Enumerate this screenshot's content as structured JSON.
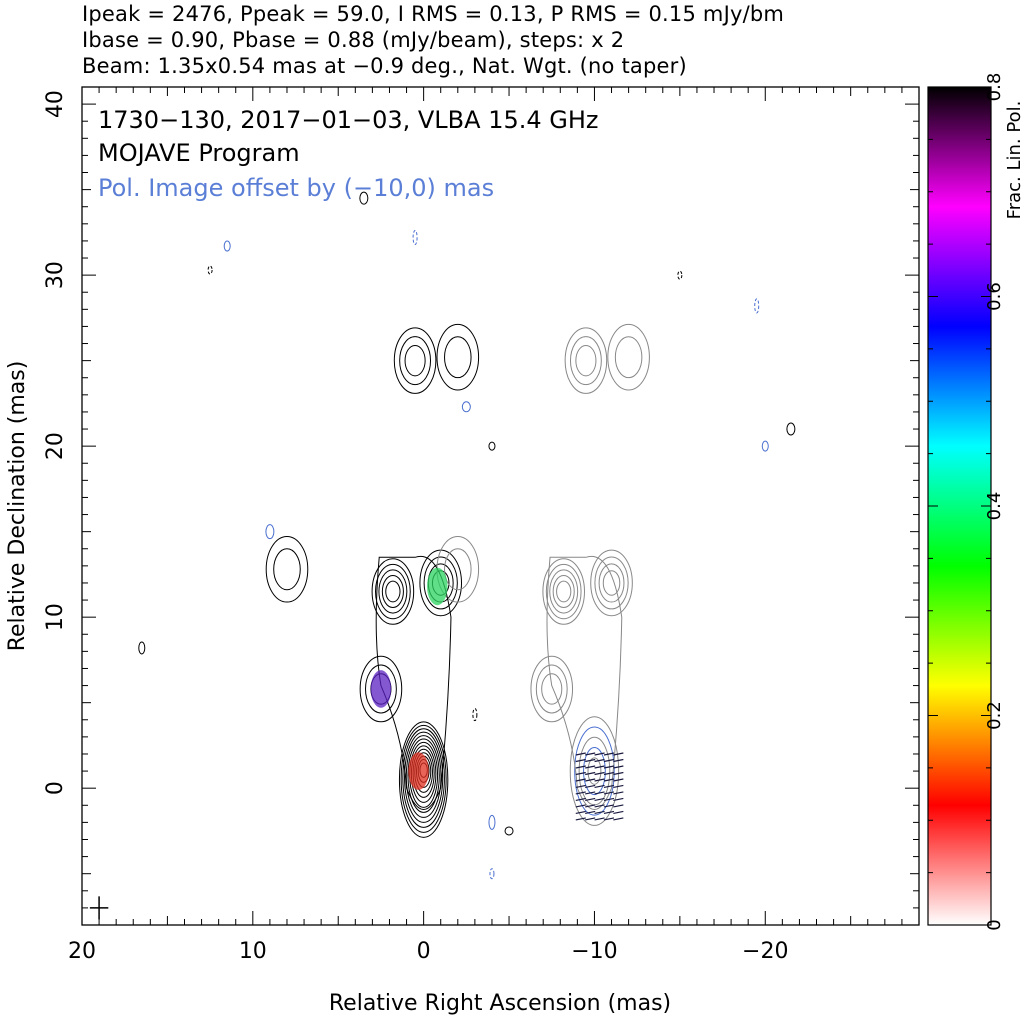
{
  "header": {
    "line1": "Ipeak = 2476, Ppeak = 59.0, I RMS = 0.13, P RMS = 0.15 mJy/bm",
    "line2": "Ibase = 0.90, Pbase = 0.88 (mJy/beam), steps: x 2",
    "line3": "Beam: 1.35x0.54 mas at −0.9 deg., Nat. Wgt. (no taper)"
  },
  "chart_data": {
    "type": "contour",
    "title": "1730−130, 2017−01−03, VLBA 15.4 GHz",
    "subtitle": "MOJAVE Program",
    "annotation": "Pol. Image offset by (−10,0) mas",
    "xlabel": "Relative Right Ascension (mas)",
    "ylabel": "Relative Declination (mas)",
    "xlim": [
      20,
      -29
    ],
    "ylim": [
      -8,
      41
    ],
    "xticks": [
      20,
      10,
      0,
      -10,
      -20
    ],
    "xtick_labels": [
      "20",
      "10",
      "0",
      "−10",
      "−20"
    ],
    "yticks": [
      0,
      10,
      20,
      30,
      40
    ],
    "ytick_labels": [
      "0",
      "10",
      "20",
      "30",
      "40"
    ],
    "colorbar": {
      "label": "Frac. Lin. Pol.",
      "range": [
        0,
        0.8
      ],
      "ticks": [
        0,
        0.2,
        0.4,
        0.6,
        0.8
      ],
      "tick_labels": [
        "0",
        "0.2",
        "0.4",
        "0.6",
        "0.8"
      ],
      "colors": [
        "#ffffff",
        "#ff0000",
        "#ffff00",
        "#00ff00",
        "#00ffff",
        "#0000ff",
        "#ff00ff",
        "#000000"
      ]
    },
    "stokes_i_core": {
      "x": 0,
      "y": 0.5,
      "levels": 13
    },
    "stokes_i_components": [
      {
        "x": 1.8,
        "y": 11.5,
        "levels": 5
      },
      {
        "x": -1,
        "y": 12,
        "levels": 4
      },
      {
        "x": 2.5,
        "y": 5.8,
        "levels": 3
      },
      {
        "x": 0.5,
        "y": 25,
        "levels": 3
      },
      {
        "x": -2,
        "y": 25.2,
        "levels": 2
      },
      {
        "x": 8,
        "y": 12.8,
        "levels": 2
      }
    ],
    "frac_pol_patches": [
      {
        "x": 0.3,
        "y": 1,
        "value": 0.18
      },
      {
        "x": -0.8,
        "y": 11.8,
        "value": 0.42
      },
      {
        "x": 2.5,
        "y": 5.8,
        "value": 0.62
      }
    ],
    "beam": {
      "major_mas": 1.35,
      "minor_mas": 0.54,
      "pa_deg": -0.9
    },
    "colors": {
      "stokes_i": "#000000",
      "pol_contour": "#4a6fd0",
      "pol_offset_i": "#888888",
      "annotation": "#5b7fd6"
    }
  }
}
